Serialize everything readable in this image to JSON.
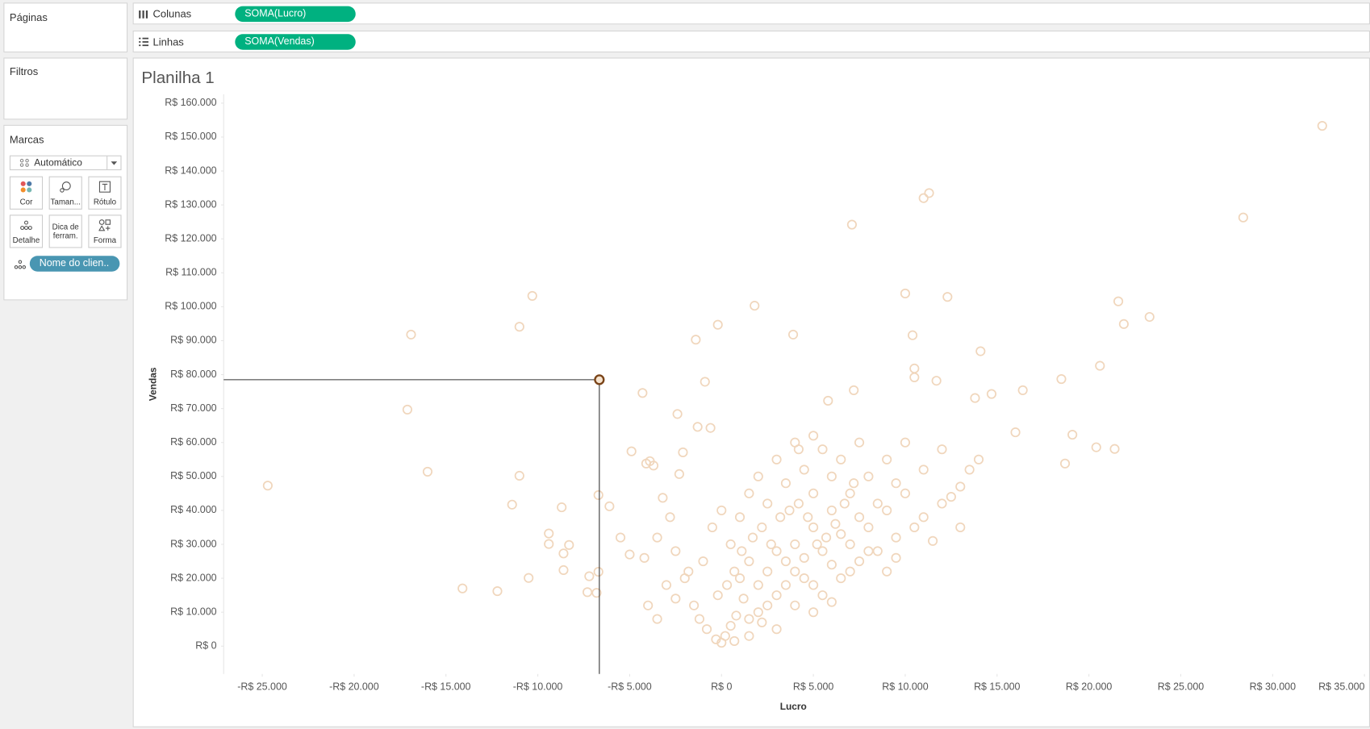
{
  "sidebar": {
    "pages": "Páginas",
    "filters": "Filtros",
    "marks": {
      "title": "Marcas",
      "type": "Automático",
      "cards": [
        "Cor",
        "Taman...",
        "Rótulo",
        "Detalhe",
        "Dica de ferram.",
        "Forma"
      ],
      "detail_pill": "Nome do clien.."
    }
  },
  "shelves": {
    "columns": {
      "label": "Colunas",
      "pill": "SOMA(Lucro)"
    },
    "rows": {
      "label": "Linhas",
      "pill": "SOMA(Vendas)"
    }
  },
  "chart_data": {
    "type": "scatter",
    "title": "Planilha 1",
    "x_label": "Lucro",
    "y_label": "Vendas",
    "color": "#f0d6bc",
    "grid": false,
    "xlim": [
      -27100,
      35300
    ],
    "xticks": [
      {
        "value": -25000,
        "label": "-R$ 25.000"
      },
      {
        "value": -20000,
        "label": "-R$ 20.000"
      },
      {
        "value": -15000,
        "label": "-R$ 15.000"
      },
      {
        "value": -10000,
        "label": "-R$ 10.000"
      },
      {
        "value": -5000,
        "label": "-R$ 5.000"
      },
      {
        "value": 0,
        "label": "R$ 0"
      },
      {
        "value": 5000,
        "label": "R$ 5.000"
      },
      {
        "value": 10000,
        "label": "R$ 10.000"
      },
      {
        "value": 15000,
        "label": "R$ 15.000"
      },
      {
        "value": 20000,
        "label": "R$ 20.000"
      },
      {
        "value": 25000,
        "label": "R$ 25.000"
      },
      {
        "value": 30000,
        "label": "R$ 30.000"
      },
      {
        "value": 35000,
        "label": "R$ 35.000"
      }
    ],
    "ylim": [
      -8200,
      162600
    ],
    "yticks": [
      {
        "value": 0,
        "label": "R$ 0"
      },
      {
        "value": 10000,
        "label": "R$ 10.000"
      },
      {
        "value": 20000,
        "label": "R$ 20.000"
      },
      {
        "value": 30000,
        "label": "R$ 30.000"
      },
      {
        "value": 40000,
        "label": "R$ 40.000"
      },
      {
        "value": 50000,
        "label": "R$ 50.000"
      },
      {
        "value": 60000,
        "label": "R$ 60.000"
      },
      {
        "value": 70000,
        "label": "R$ 70.000"
      },
      {
        "value": 80000,
        "label": "R$ 80.000"
      },
      {
        "value": 90000,
        "label": "R$ 90.000"
      },
      {
        "value": 100000,
        "label": "R$ 100.000"
      },
      {
        "value": 110000,
        "label": "R$ 110.000"
      },
      {
        "value": 120000,
        "label": "R$ 120.000"
      },
      {
        "value": 130000,
        "label": "R$ 130.000"
      },
      {
        "value": 140000,
        "label": "R$ 140.000"
      },
      {
        "value": 150000,
        "label": "R$ 150.000"
      },
      {
        "value": 160000,
        "label": "R$ 160.000"
      }
    ],
    "x": [
      -24700,
      -16900,
      -17100,
      -16000,
      -14100,
      -12200,
      -11400,
      -11000,
      -11000,
      -10300,
      -10500,
      -9400,
      -9400,
      -8700,
      -8600,
      -8600,
      -8300,
      -7300,
      -6800,
      -7200,
      -6700,
      -6700,
      -6100,
      -4300,
      -4900,
      -3900,
      -3700,
      -4100,
      -2300,
      -2400,
      -2100,
      -3200,
      -1300,
      -600,
      -900,
      -1400,
      -200,
      1800,
      3900,
      7100,
      11000,
      11300,
      10000,
      12300,
      10400,
      14100,
      10500,
      10500,
      11700,
      18500,
      20600,
      21600,
      21900,
      23300,
      28400,
      32700,
      16400,
      14700,
      13800,
      16000,
      19100,
      18700,
      20400,
      21400,
      7200,
      5800,
      -1500,
      -800,
      -300,
      0,
      200,
      500,
      800,
      1200,
      1500,
      2000,
      2500,
      3000,
      3500,
      4000,
      4500,
      5000,
      5500,
      6000,
      6500,
      7000,
      7500,
      8000,
      8500,
      9000,
      9500,
      10000,
      11000,
      12000,
      13000,
      14000,
      -2000,
      -2500,
      -3000,
      -3500,
      -1000,
      -500,
      0,
      500,
      1000,
      1500,
      2000,
      2500,
      3000,
      3500,
      4000,
      4500,
      5000,
      5500,
      6000,
      6500,
      7000,
      7500,
      8000,
      8500,
      9000,
      9500,
      10000,
      11000,
      12000,
      13000,
      1000,
      1500,
      2000,
      2500,
      3000,
      3500,
      4000,
      4500,
      5000,
      5500,
      6000,
      6500,
      7000,
      -1200,
      -200,
      300,
      700,
      1100,
      1700,
      2200,
      2700,
      3200,
      3700,
      4200,
      4700,
      5200,
      5700,
      6200,
      6700,
      7200,
      -4000,
      -3500,
      -2500,
      -1800,
      -2800,
      -4200,
      -5500,
      -5000,
      3000,
      1500,
      700,
      2200,
      4000,
      5000,
      6000,
      9000,
      10500,
      11500,
      12500,
      13500,
      8000,
      9500,
      7500,
      5000,
      4200
    ],
    "y": [
      47300,
      91800,
      69700,
      51400,
      17000,
      16200,
      41700,
      50200,
      94100,
      103200,
      20100,
      33200,
      30100,
      40900,
      27300,
      22400,
      29800,
      15900,
      15700,
      20600,
      21900,
      44500,
      41200,
      74600,
      57400,
      54500,
      53200,
      53800,
      50700,
      68400,
      57100,
      43700,
      64600,
      64300,
      77900,
      90300,
      94700,
      100300,
      91800,
      124200,
      132000,
      133500,
      103900,
      102900,
      91600,
      86900,
      81800,
      79200,
      78200,
      78700,
      82600,
      101600,
      94900,
      97000,
      126300,
      153300,
      75400,
      74300,
      73100,
      63000,
      62300,
      53800,
      58600,
      58100,
      75400,
      72300,
      12000,
      5000,
      2000,
      1000,
      3000,
      6000,
      9000,
      14000,
      8000,
      18000,
      22000,
      15000,
      25000,
      30000,
      20000,
      35000,
      28000,
      40000,
      33000,
      45000,
      38000,
      50000,
      42000,
      55000,
      48000,
      60000,
      52000,
      58000,
      47000,
      55000,
      20000,
      28000,
      18000,
      32000,
      25000,
      35000,
      40000,
      30000,
      38000,
      45000,
      50000,
      42000,
      55000,
      48000,
      60000,
      52000,
      45000,
      58000,
      50000,
      55000,
      30000,
      25000,
      35000,
      28000,
      40000,
      32000,
      45000,
      38000,
      42000,
      35000,
      20000,
      25000,
      10000,
      12000,
      28000,
      18000,
      22000,
      26000,
      18000,
      15000,
      24000,
      20000,
      22000,
      8000,
      15000,
      18000,
      22000,
      28000,
      32000,
      35000,
      30000,
      38000,
      40000,
      42000,
      38000,
      30000,
      32000,
      36000,
      42000,
      48000,
      12000,
      8000,
      14000,
      22000,
      38000,
      26000,
      32000,
      27000,
      5000,
      3000,
      1500,
      7000,
      12000,
      10000,
      13000,
      22000,
      35000,
      31000,
      44000,
      52000,
      28000,
      26000,
      60000,
      62000,
      58000
    ],
    "highlight": {
      "x": -6650,
      "y": 78500,
      "color": "#7a4418"
    }
  }
}
